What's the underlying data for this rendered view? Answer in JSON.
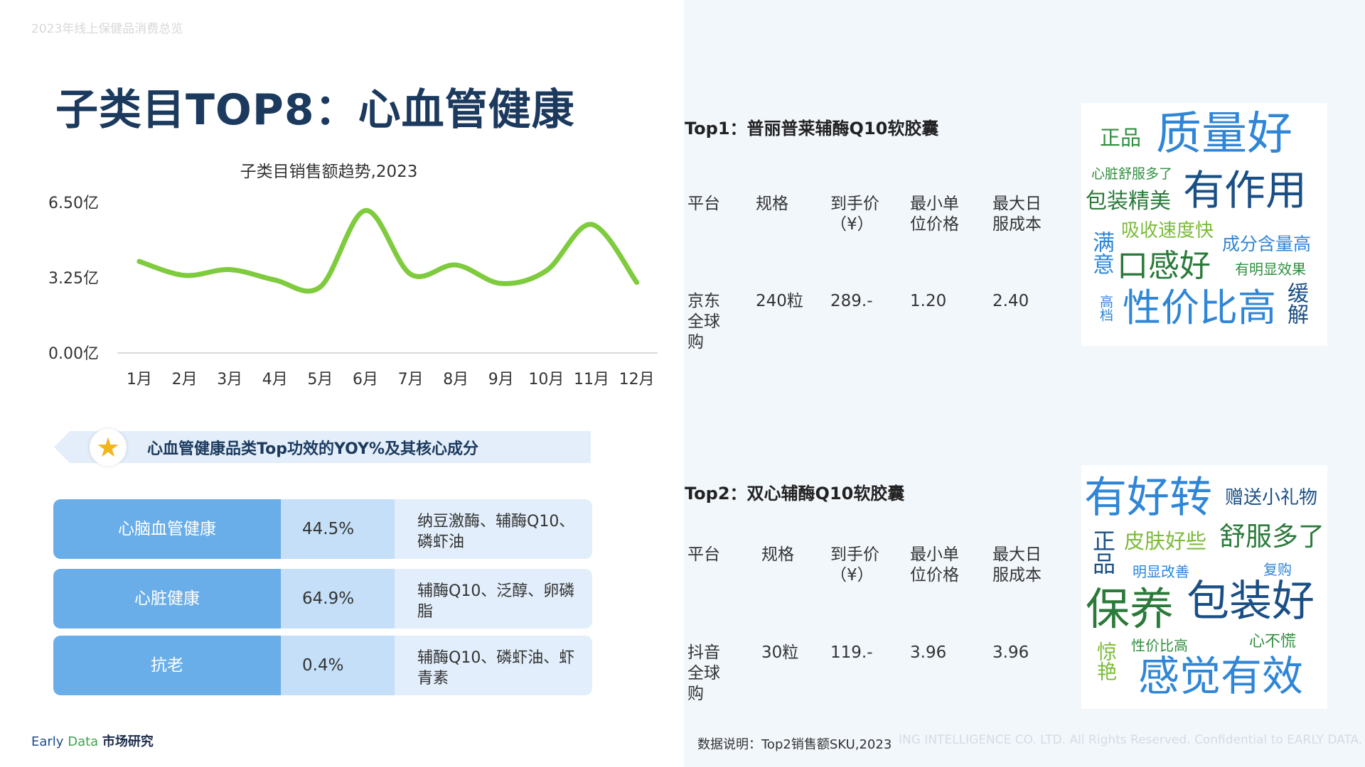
{
  "header": {
    "subtitle": "2023年线上保健品消费总览"
  },
  "page_title": "子类目TOP8：心血管健康",
  "chart_data": {
    "type": "line",
    "title": "子类目销售额趋势,2023",
    "categories": [
      "1月",
      "2月",
      "3月",
      "4月",
      "5月",
      "6月",
      "7月",
      "8月",
      "9月",
      "10月",
      "11月",
      "12月"
    ],
    "series": [
      {
        "values": [
          3.95,
          3.35,
          3.6,
          3.15,
          2.85,
          6.15,
          3.4,
          3.8,
          3.0,
          3.55,
          5.55,
          3.05
        ]
      }
    ],
    "yticks": [
      "0.00亿",
      "3.25亿",
      "6.50亿"
    ],
    "ylim": [
      0,
      6.5
    ],
    "color": "#7fcb3e"
  },
  "banner": {
    "text": "心血管健康品类Top功效的YOY%及其核心成分",
    "icon": "star-icon"
  },
  "efficacy_rows": [
    {
      "name": "心脑血管健康",
      "yoy": "44.5%",
      "ingredients": "纳豆激酶、辅酶Q10、磷虾油"
    },
    {
      "name": "心脏健康",
      "yoy": "64.9%",
      "ingredients": "辅酶Q10、泛醇、卵磷脂"
    },
    {
      "name": "抗老",
      "yoy": "0.4%",
      "ingredients": "辅酶Q10、磷虾油、虾青素"
    }
  ],
  "footer": {
    "brand_early": "Early",
    "brand_data": "Data",
    "brand_cn": "市场研究"
  },
  "top1": {
    "title": "Top1：普丽普莱辅酶Q10软胶囊",
    "headers": [
      "平台",
      "规格",
      "到手价（¥）",
      "最小单位价格",
      "最大日服成本"
    ],
    "row": [
      "京东全球购",
      "240粒",
      "289.-",
      "1.20",
      "2.40"
    ],
    "cloud": [
      "正品",
      "质量好",
      "心脏舒服多了",
      "包装精美",
      "有作用",
      "吸收速度快",
      "满意",
      "口感好",
      "成分含量高",
      "有明显效果",
      "高档",
      "性价比高",
      "缓解"
    ]
  },
  "top2": {
    "title": "Top2：双心辅酶Q10软胶囊",
    "headers": [
      "平台",
      "规格",
      "到手价（¥）",
      "最小单位价格",
      "最大日服成本"
    ],
    "row": [
      "抖音全球购",
      "30粒",
      "119.-",
      "3.96",
      "3.96"
    ],
    "cloud": [
      "有好转",
      "赠送小礼物",
      "正品",
      "皮肤好些",
      "舒服多了",
      "明显改善",
      "复购",
      "保养",
      "包装好",
      "惊艳",
      "性价比高",
      "心不慌",
      "感觉有效"
    ]
  },
  "note": "数据说明：Top2销售额SKU,2023",
  "copyright": "ING INTELLIGENCE CO. LTD. All Rights Reserved. Confidential to EARLY DATA."
}
